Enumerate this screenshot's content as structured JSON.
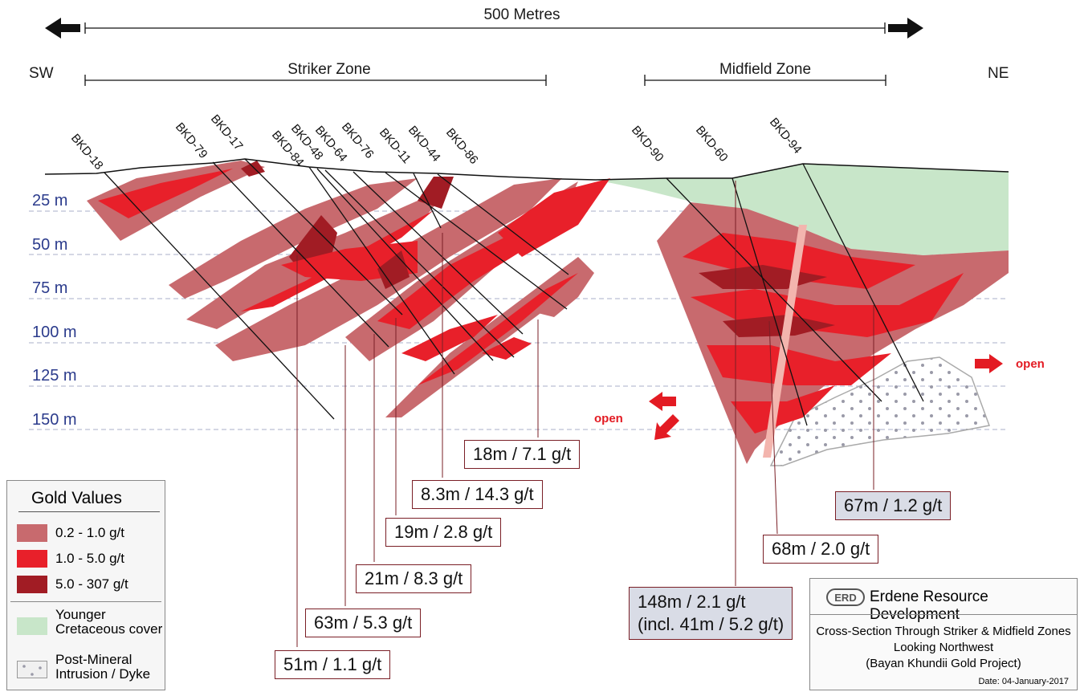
{
  "header": {
    "scale_label": "500 Metres",
    "sw": "SW",
    "ne": "NE",
    "zone_striker": "Striker Zone",
    "zone_midfield": "Midfield Zone"
  },
  "depths": [
    "25 m",
    "50 m",
    "75 m",
    "100 m",
    "125 m",
    "150 m"
  ],
  "drill_holes": [
    "BKD-18",
    "BKD-79",
    "BKD-17",
    "BKD-84",
    "BKD-48",
    "BKD-64",
    "BKD-76",
    "BKD-11",
    "BKD-44",
    "BKD-86",
    "BKD-90",
    "BKD-60",
    "BKD-94"
  ],
  "intercepts": [
    "18m / 7.1 g/t",
    "8.3m / 14.3 g/t",
    "19m / 2.8 g/t",
    "21m / 8.3 g/t",
    "63m / 5.3 g/t",
    "51m / 1.1 g/t",
    "148m / 2.1 g/t",
    "(incl. 41m / 5.2 g/t)",
    "68m / 2.0 g/t",
    "67m / 1.2 g/t"
  ],
  "open_label": "open",
  "legend": {
    "title": "Gold Values",
    "items": [
      {
        "label": "0.2 - 1.0 g/t",
        "color": "#c86a6e"
      },
      {
        "label": "1.0 - 5.0 g/t",
        "color": "#e8202a"
      },
      {
        "label": "5.0 - 307 g/t",
        "color": "#a11c24"
      }
    ],
    "cover_line1": "Younger",
    "cover_line2": "Cretaceous cover",
    "cover_color": "#c8e6c9",
    "intrusion_line1": "Post-Mineral",
    "intrusion_line2": "Intrusion / Dyke"
  },
  "titleblock": {
    "logo_text": "ERD",
    "company": "Erdene Resource Development",
    "line1": "Cross-Section Through Striker & Midfield Zones",
    "line2": "Looking Northwest",
    "line3": "(Bayan Khundii Gold Project)",
    "date": "Date: 04-January-2017"
  },
  "colors": {
    "low": "#c86a6e",
    "mid": "#e8202a",
    "high": "#a11c24",
    "cover": "#c8e6c9",
    "depth_text": "#2b3b8c"
  }
}
